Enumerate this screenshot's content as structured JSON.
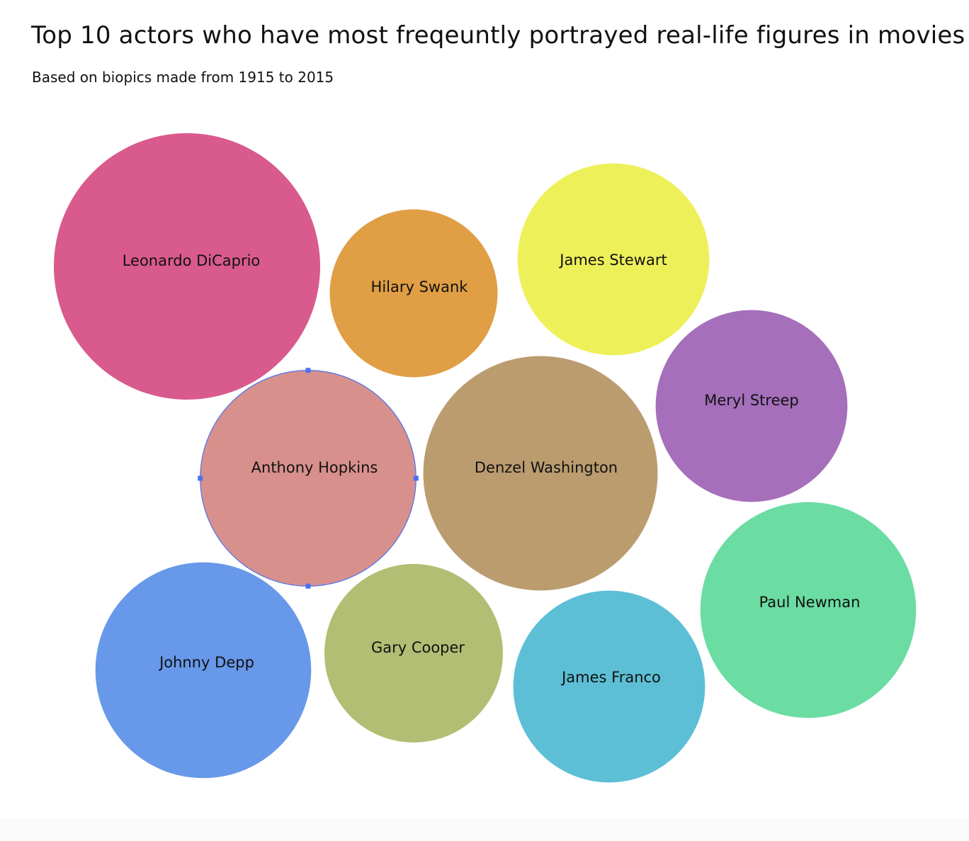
{
  "chart_data": {
    "type": "bubble",
    "title": "Top 10 actors who have most freqeuntly portrayed real-life figures in movies",
    "subtitle": "Based on biopics made from 1915 to 2015",
    "legend": "none",
    "grid": false,
    "bubbles": [
      {
        "name": "Leonardo DiCaprio",
        "relative_size": 1.0,
        "color": "#d95a8c"
      },
      {
        "name": "Hilary Swank",
        "relative_size": 0.63,
        "color": "#e09e45"
      },
      {
        "name": "James Stewart",
        "relative_size": 0.72,
        "color": "#eef05a"
      },
      {
        "name": "Meryl Streep",
        "relative_size": 0.72,
        "color": "#a56fbb"
      },
      {
        "name": "Anthony Hopkins",
        "relative_size": 0.81,
        "color": "#d8908c"
      },
      {
        "name": "Denzel Washington",
        "relative_size": 0.88,
        "color": "#bb9c6f"
      },
      {
        "name": "Johnny Depp",
        "relative_size": 0.81,
        "color": "#6798e9"
      },
      {
        "name": "Gary Cooper",
        "relative_size": 0.67,
        "color": "#b1be73"
      },
      {
        "name": "James Franco",
        "relative_size": 0.72,
        "color": "#5cbfd6"
      },
      {
        "name": "Paul Newman",
        "relative_size": 0.81,
        "color": "#6bdca2"
      }
    ],
    "selected": "Anthony Hopkins",
    "selection_color": "#4a72f0"
  }
}
